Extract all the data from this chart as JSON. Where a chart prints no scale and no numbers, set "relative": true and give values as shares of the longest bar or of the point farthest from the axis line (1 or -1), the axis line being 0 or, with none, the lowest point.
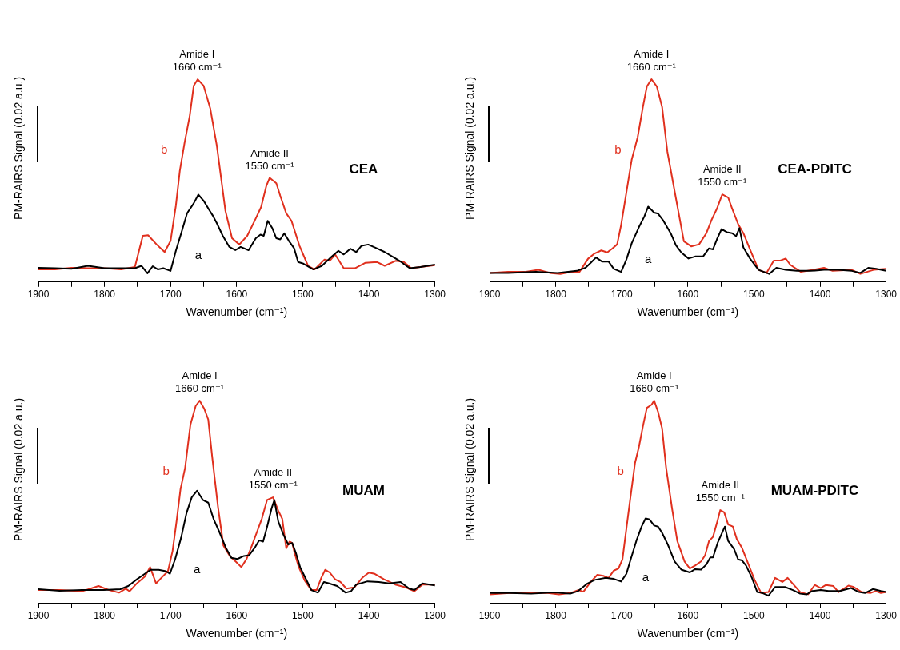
{
  "chart_data": [
    {
      "type": "line",
      "title": "CEA",
      "xlabel": "Wavenumber (cm⁻¹)",
      "ylabel": "PM-RAIRS Signal (0.02 a.u.)",
      "relative": true,
      "xlim": [
        1900,
        1300
      ],
      "xticks": [
        1900,
        {
          "value": 1850,
          "label": null
        },
        1800,
        {
          "value": 1750,
          "label": null
        },
        1700,
        {
          "value": 1650,
          "label": null
        },
        1600,
        {
          "value": 1550,
          "label": null
        },
        1500,
        {
          "value": 1450,
          "label": null
        },
        1400,
        {
          "value": 1350,
          "label": null
        },
        1300
      ],
      "annotations": [
        {
          "text": "Amide I\n1660 cm⁻¹",
          "x": 1660,
          "y": 1
        },
        {
          "text": "Amide II\n1550 cm⁻¹",
          "x": 1550,
          "y": 0.514
        }
      ],
      "series": [
        {
          "name": "a",
          "color": "#000000",
          "x": [
            1900,
            1875,
            1850,
            1825,
            1800,
            1775,
            1754,
            1744,
            1735,
            1727,
            1719,
            1711,
            1700,
            1692,
            1684,
            1675,
            1665,
            1658,
            1650,
            1642,
            1636,
            1630,
            1621,
            1611,
            1602,
            1594,
            1582,
            1571,
            1564,
            1559,
            1553,
            1546,
            1540,
            1534,
            1528,
            1521,
            1513,
            1507,
            1500,
            1484,
            1471,
            1459,
            1446,
            1438,
            1428,
            1419,
            1411,
            1401,
            1388,
            1376,
            1363,
            1351,
            1338,
            1322,
            1300
          ],
          "values": [
            0.07,
            0.068,
            0.065,
            0.08,
            0.068,
            0.068,
            0.068,
            0.08,
            0.043,
            0.078,
            0.062,
            0.068,
            0.055,
            0.154,
            0.24,
            0.339,
            0.388,
            0.431,
            0.401,
            0.358,
            0.327,
            0.29,
            0.228,
            0.173,
            0.157,
            0.173,
            0.157,
            0.216,
            0.234,
            0.228,
            0.302,
            0.265,
            0.216,
            0.21,
            0.24,
            0.203,
            0.166,
            0.099,
            0.092,
            0.062,
            0.08,
            0.117,
            0.154,
            0.136,
            0.164,
            0.148,
            0.179,
            0.185,
            0.166,
            0.148,
            0.123,
            0.099,
            0.068,
            0.074,
            0.086
          ]
        },
        {
          "name": "b",
          "color": "#e0301e",
          "x": [
            1900,
            1875,
            1850,
            1825,
            1800,
            1775,
            1754,
            1742,
            1734,
            1721,
            1709,
            1700,
            1692,
            1686,
            1679,
            1671,
            1665,
            1659,
            1650,
            1640,
            1630,
            1617,
            1607,
            1596,
            1584,
            1571,
            1563,
            1555,
            1550,
            1540,
            1534,
            1525,
            1517,
            1505,
            1492,
            1482,
            1467,
            1459,
            1451,
            1438,
            1421,
            1405,
            1388,
            1376,
            1359,
            1347,
            1336,
            1322,
            1300
          ],
          "values": [
            0.062,
            0.062,
            0.07,
            0.068,
            0.068,
            0.062,
            0.074,
            0.228,
            0.231,
            0.185,
            0.148,
            0.203,
            0.376,
            0.549,
            0.684,
            0.82,
            0.968,
            1,
            0.968,
            0.857,
            0.672,
            0.351,
            0.216,
            0.185,
            0.228,
            0.314,
            0.37,
            0.475,
            0.514,
            0.487,
            0.425,
            0.339,
            0.302,
            0.179,
            0.08,
            0.062,
            0.111,
            0.105,
            0.136,
            0.068,
            0.068,
            0.095,
            0.099,
            0.08,
            0.105,
            0.099,
            0.068,
            0.074,
            0.083
          ]
        }
      ]
    },
    {
      "type": "line",
      "title": "CEA-PDITC",
      "xlabel": "Wavenumber (cm⁻¹)",
      "ylabel": "PM-RAIRS Signal (0.02 a.u.)",
      "relative": true,
      "xlim": [
        1900,
        1300
      ],
      "xticks": [
        1900,
        {
          "value": 1850,
          "label": null
        },
        1800,
        {
          "value": 1750,
          "label": null
        },
        1700,
        {
          "value": 1650,
          "label": null
        },
        1600,
        {
          "value": 1550,
          "label": null
        },
        1500,
        {
          "value": 1450,
          "label": null
        },
        1400,
        {
          "value": 1350,
          "label": null
        },
        1300
      ],
      "annotations": [
        {
          "text": "Amide I\n1660 cm⁻¹",
          "x": 1655,
          "y": 1
        },
        {
          "text": "Amide II\n1550 cm⁻¹",
          "x": 1548,
          "y": 0.432
        }
      ],
      "series": [
        {
          "name": "a",
          "color": "#000000",
          "x": [
            1900,
            1872,
            1830,
            1797,
            1768,
            1755,
            1747,
            1739,
            1730,
            1720,
            1712,
            1701,
            1693,
            1685,
            1674,
            1666,
            1660,
            1651,
            1645,
            1637,
            1626,
            1618,
            1610,
            1599,
            1589,
            1577,
            1568,
            1562,
            1556,
            1549,
            1541,
            1533,
            1527,
            1522,
            1516,
            1506,
            1493,
            1477,
            1466,
            1452,
            1435,
            1414,
            1394,
            1373,
            1352,
            1339,
            1327,
            1315,
            1300
          ],
          "values": [
            0.045,
            0.045,
            0.05,
            0.045,
            0.055,
            0.07,
            0.095,
            0.121,
            0.101,
            0.101,
            0.065,
            0.05,
            0.111,
            0.191,
            0.271,
            0.322,
            0.372,
            0.342,
            0.337,
            0.302,
            0.241,
            0.181,
            0.146,
            0.116,
            0.126,
            0.126,
            0.166,
            0.161,
            0.211,
            0.261,
            0.246,
            0.241,
            0.226,
            0.266,
            0.171,
            0.116,
            0.06,
            0.04,
            0.07,
            0.06,
            0.055,
            0.055,
            0.06,
            0.06,
            0.055,
            0.045,
            0.07,
            0.065,
            0.055
          ]
        },
        {
          "name": "b",
          "color": "#e0301e",
          "x": [
            1900,
            1872,
            1847,
            1826,
            1809,
            1793,
            1776,
            1764,
            1751,
            1741,
            1731,
            1722,
            1714,
            1707,
            1701,
            1693,
            1685,
            1676,
            1668,
            1662,
            1655,
            1647,
            1639,
            1631,
            1618,
            1606,
            1595,
            1583,
            1572,
            1564,
            1556,
            1548,
            1539,
            1533,
            1524,
            1516,
            1506,
            1493,
            1481,
            1470,
            1460,
            1452,
            1445,
            1429,
            1410,
            1394,
            1381,
            1352,
            1339,
            1319,
            1300
          ],
          "values": [
            0.045,
            0.05,
            0.05,
            0.06,
            0.045,
            0.04,
            0.05,
            0.05,
            0.115,
            0.141,
            0.156,
            0.146,
            0.166,
            0.186,
            0.281,
            0.442,
            0.603,
            0.714,
            0.864,
            0.965,
            1,
            0.965,
            0.864,
            0.643,
            0.412,
            0.201,
            0.176,
            0.186,
            0.241,
            0.307,
            0.362,
            0.432,
            0.417,
            0.362,
            0.286,
            0.241,
            0.161,
            0.06,
            0.045,
            0.106,
            0.106,
            0.116,
            0.085,
            0.05,
            0.06,
            0.07,
            0.055,
            0.06,
            0.04,
            0.06,
            0.065
          ]
        }
      ]
    },
    {
      "type": "line",
      "title": "MUAM",
      "xlabel": "Wavenumber (cm⁻¹)",
      "ylabel": "PM-RAIRS Signal (0.02 a.u.)",
      "relative": true,
      "xlim": [
        1900,
        1300
      ],
      "xticks": [
        1900,
        {
          "value": 1850,
          "label": null
        },
        1800,
        {
          "value": 1750,
          "label": null
        },
        1700,
        {
          "value": 1650,
          "label": null
        },
        1600,
        {
          "value": 1550,
          "label": null
        },
        1500,
        {
          "value": 1450,
          "label": null
        },
        1400,
        {
          "value": 1350,
          "label": null
        },
        1300
      ],
      "annotations": [
        {
          "text": "Amide I\n1660 cm⁻¹",
          "x": 1656,
          "y": 1
        },
        {
          "text": "Amide II\n1550 cm⁻¹",
          "x": 1545,
          "y": 0.523
        }
      ],
      "series": [
        {
          "name": "a",
          "color": "#000000",
          "x": [
            1900,
            1868,
            1834,
            1801,
            1776,
            1764,
            1751,
            1739,
            1730,
            1718,
            1707,
            1701,
            1693,
            1684,
            1676,
            1668,
            1660,
            1651,
            1643,
            1635,
            1626,
            1616,
            1608,
            1599,
            1589,
            1581,
            1572,
            1566,
            1560,
            1554,
            1547,
            1543,
            1537,
            1529,
            1522,
            1516,
            1510,
            1504,
            1498,
            1487,
            1477,
            1468,
            1460,
            1448,
            1435,
            1427,
            1419,
            1402,
            1385,
            1369,
            1352,
            1339,
            1331,
            1319,
            1300
          ],
          "values": [
            0.07,
            0.062,
            0.066,
            0.066,
            0.07,
            0.086,
            0.119,
            0.146,
            0.166,
            0.166,
            0.159,
            0.146,
            0.219,
            0.325,
            0.444,
            0.523,
            0.556,
            0.51,
            0.497,
            0.417,
            0.351,
            0.272,
            0.225,
            0.219,
            0.234,
            0.238,
            0.278,
            0.311,
            0.305,
            0.377,
            0.47,
            0.51,
            0.404,
            0.338,
            0.291,
            0.298,
            0.245,
            0.179,
            0.139,
            0.066,
            0.053,
            0.106,
            0.099,
            0.086,
            0.053,
            0.06,
            0.093,
            0.109,
            0.106,
            0.099,
            0.106,
            0.073,
            0.066,
            0.099,
            0.089
          ]
        },
        {
          "name": "b",
          "color": "#e0301e",
          "x": [
            1900,
            1868,
            1834,
            1809,
            1793,
            1778,
            1768,
            1762,
            1751,
            1739,
            1731,
            1722,
            1714,
            1704,
            1697,
            1691,
            1685,
            1678,
            1670,
            1662,
            1656,
            1649,
            1643,
            1637,
            1628,
            1620,
            1610,
            1601,
            1593,
            1585,
            1577,
            1568,
            1562,
            1554,
            1545,
            1537,
            1531,
            1525,
            1520,
            1516,
            1512,
            1506,
            1497,
            1487,
            1479,
            1472,
            1466,
            1459,
            1451,
            1443,
            1434,
            1422,
            1410,
            1400,
            1391,
            1377,
            1360,
            1344,
            1331,
            1319,
            1300
          ],
          "values": [
            0.066,
            0.066,
            0.06,
            0.086,
            0.066,
            0.053,
            0.073,
            0.06,
            0.099,
            0.132,
            0.179,
            0.099,
            0.126,
            0.159,
            0.258,
            0.404,
            0.563,
            0.669,
            0.881,
            0.974,
            1,
            0.96,
            0.907,
            0.722,
            0.47,
            0.285,
            0.232,
            0.205,
            0.179,
            0.219,
            0.285,
            0.364,
            0.417,
            0.51,
            0.523,
            0.457,
            0.417,
            0.272,
            0.305,
            0.298,
            0.245,
            0.179,
            0.113,
            0.066,
            0.066,
            0.126,
            0.166,
            0.152,
            0.119,
            0.106,
            0.073,
            0.079,
            0.126,
            0.152,
            0.146,
            0.119,
            0.093,
            0.079,
            0.06,
            0.093,
            0.093
          ]
        }
      ]
    },
    {
      "type": "line",
      "title": "MUAM-PDITC",
      "xlabel": "Wavenumber (cm⁻¹)",
      "ylabel": "PM-RAIRS Signal (0.02 a.u.)",
      "relative": true,
      "xlim": [
        1900,
        1300
      ],
      "xticks": [
        1900,
        {
          "value": 1850,
          "label": null
        },
        1800,
        {
          "value": 1750,
          "label": null
        },
        1700,
        {
          "value": 1650,
          "label": null
        },
        1600,
        {
          "value": 1550,
          "label": null
        },
        1500,
        {
          "value": 1450,
          "label": null
        },
        1400,
        {
          "value": 1350,
          "label": null
        },
        1300
      ],
      "annotations": [
        {
          "text": "Amide I\n1660 cm⁻¹",
          "x": 1651,
          "y": 1
        },
        {
          "text": "Amide II\n1550 cm⁻¹",
          "x": 1551,
          "y": 0.46
        }
      ],
      "series": [
        {
          "name": "a",
          "color": "#000000",
          "x": [
            1900,
            1870,
            1837,
            1803,
            1778,
            1766,
            1753,
            1741,
            1733,
            1724,
            1712,
            1701,
            1693,
            1687,
            1678,
            1670,
            1664,
            1658,
            1651,
            1645,
            1639,
            1630,
            1620,
            1610,
            1597,
            1589,
            1580,
            1572,
            1566,
            1562,
            1555,
            1549,
            1544,
            1539,
            1530,
            1524,
            1518,
            1512,
            1503,
            1495,
            1487,
            1478,
            1468,
            1453,
            1441,
            1430,
            1420,
            1412,
            1399,
            1387,
            1370,
            1353,
            1341,
            1332,
            1320,
            1308,
            1300
          ],
          "values": [
            0.051,
            0.051,
            0.048,
            0.054,
            0.048,
            0.061,
            0.096,
            0.116,
            0.121,
            0.126,
            0.121,
            0.108,
            0.146,
            0.212,
            0.308,
            0.379,
            0.419,
            0.414,
            0.384,
            0.379,
            0.348,
            0.288,
            0.207,
            0.167,
            0.153,
            0.169,
            0.167,
            0.192,
            0.227,
            0.227,
            0.298,
            0.343,
            0.379,
            0.308,
            0.268,
            0.217,
            0.212,
            0.187,
            0.126,
            0.056,
            0.051,
            0.038,
            0.081,
            0.081,
            0.066,
            0.048,
            0.045,
            0.061,
            0.066,
            0.061,
            0.061,
            0.076,
            0.056,
            0.051,
            0.071,
            0.061,
            0.056
          ]
        },
        {
          "name": "b",
          "color": "#e0301e",
          "x": [
            1900,
            1870,
            1837,
            1812,
            1795,
            1778,
            1766,
            1758,
            1747,
            1737,
            1728,
            1720,
            1712,
            1705,
            1699,
            1693,
            1687,
            1680,
            1674,
            1668,
            1662,
            1655,
            1651,
            1645,
            1639,
            1633,
            1624,
            1616,
            1605,
            1597,
            1589,
            1580,
            1574,
            1568,
            1562,
            1555,
            1551,
            1545,
            1539,
            1532,
            1526,
            1518,
            1510,
            1499,
            1489,
            1478,
            1468,
            1457,
            1449,
            1441,
            1430,
            1418,
            1408,
            1399,
            1391,
            1380,
            1372,
            1357,
            1349,
            1337,
            1324,
            1316,
            1308,
            1300
          ],
          "values": [
            0.045,
            0.051,
            0.051,
            0.051,
            0.045,
            0.051,
            0.066,
            0.058,
            0.106,
            0.141,
            0.136,
            0.126,
            0.162,
            0.172,
            0.217,
            0.369,
            0.52,
            0.692,
            0.773,
            0.874,
            0.965,
            0.98,
            1,
            0.944,
            0.864,
            0.672,
            0.47,
            0.308,
            0.207,
            0.172,
            0.187,
            0.207,
            0.237,
            0.308,
            0.328,
            0.409,
            0.46,
            0.449,
            0.389,
            0.379,
            0.318,
            0.273,
            0.207,
            0.116,
            0.051,
            0.056,
            0.126,
            0.106,
            0.126,
            0.096,
            0.056,
            0.045,
            0.091,
            0.076,
            0.091,
            0.086,
            0.056,
            0.088,
            0.081,
            0.056,
            0.051,
            0.061,
            0.051,
            0.056
          ]
        }
      ]
    }
  ]
}
